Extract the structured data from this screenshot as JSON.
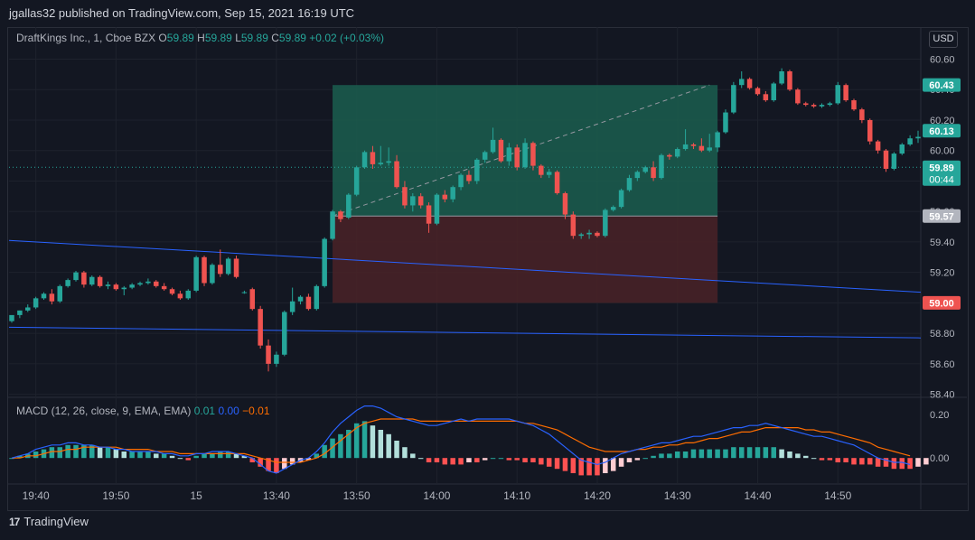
{
  "header": {
    "published": "jgallas32 published on TradingView.com, Sep 15, 2021 16:19 UTC"
  },
  "legend": {
    "symbol": "DraftKings Inc., 1, Cboe BZX",
    "o_label": "O",
    "o_value": "59.89",
    "h_label": "H",
    "h_value": "59.89",
    "l_label": "L",
    "l_value": "59.89",
    "c_label": "C",
    "c_value": "59.89",
    "change": "+0.02 (+0.03%)"
  },
  "macd_legend": {
    "label": "MACD (12, 26, close, 9, EMA, EMA)",
    "macd": "0.01",
    "signal": "0.00",
    "hist": "−0.01"
  },
  "currency": "USD",
  "footer": {
    "brand": "TradingView",
    "logo": "17"
  },
  "colors": {
    "up": "#26a69a",
    "down": "#ef5350",
    "bg": "#131722",
    "grid": "#1e222d",
    "profit_zone": "#1b5e4f",
    "loss_zone": "#4a2227",
    "trendline": "#2962ff",
    "macd_line": "#2962ff",
    "signal_line": "#ff6d00",
    "hist_up_strong": "#26a69a",
    "hist_up_weak": "#b2dfdb",
    "hist_down_strong": "#ff5252",
    "hist_down_weak": "#ffcdd2"
  },
  "chart_data": [
    {
      "type": "candlestick",
      "title": "DraftKings Inc., 1, Cboe BZX",
      "ylim": [
        58.38,
        60.68
      ],
      "y_ticks": [
        "60.60",
        "60.40",
        "60.20",
        "60.00",
        "59.80",
        "59.60",
        "59.40",
        "59.20",
        "59.00",
        "58.80",
        "58.60",
        "58.40"
      ],
      "x_ticks": [
        "19:40",
        "19:50",
        "15",
        "13:40",
        "13:50",
        "14:00",
        "14:10",
        "14:20",
        "14:30",
        "14:40",
        "14:50"
      ],
      "price_labels": [
        {
          "text": "60.43",
          "value": 60.43,
          "color": "#26a69a"
        },
        {
          "text": "60.13",
          "value": 60.13,
          "color": "#26a69a"
        },
        {
          "text": "59.89",
          "sub": "00:44",
          "value": 59.89,
          "color": "#26a69a"
        },
        {
          "text": "59.57",
          "value": 59.57,
          "color": "#b2b5be"
        },
        {
          "text": "59.00",
          "value": 59.0,
          "color": "#ef5350"
        }
      ],
      "current_price": 59.89,
      "position": {
        "entry": 59.57,
        "target": 60.43,
        "stop": 59.0,
        "start_bar": 40,
        "end_bar": 88,
        "signal_line": {
          "from_bar": 40,
          "from_price": 59.57,
          "to_bar": 87,
          "to_price": 60.43
        }
      },
      "trendlines": [
        {
          "from_bar": 0,
          "from_price": 59.41,
          "to_bar": 112,
          "to_price": 59.07
        },
        {
          "from_bar": 0,
          "from_price": 58.84,
          "to_bar": 112,
          "to_price": 58.77
        }
      ],
      "candles": [
        [
          58.88,
          58.91,
          58.87,
          58.92
        ],
        [
          58.92,
          58.95,
          58.9,
          58.95
        ],
        [
          58.95,
          58.99,
          58.94,
          58.97
        ],
        [
          58.97,
          59.04,
          58.96,
          59.03
        ],
        [
          59.03,
          59.07,
          59.02,
          59.06
        ],
        [
          59.06,
          59.09,
          58.99,
          59.01
        ],
        [
          59.01,
          59.12,
          59.0,
          59.11
        ],
        [
          59.11,
          59.16,
          59.1,
          59.15
        ],
        [
          59.15,
          59.21,
          59.14,
          59.2
        ],
        [
          59.2,
          59.21,
          59.1,
          59.12
        ],
        [
          59.12,
          59.18,
          59.11,
          59.17
        ],
        [
          59.17,
          59.18,
          59.1,
          59.11
        ],
        [
          59.11,
          59.14,
          59.09,
          59.12
        ],
        [
          59.12,
          59.13,
          59.08,
          59.09
        ],
        [
          59.09,
          59.11,
          59.05,
          59.1
        ],
        [
          59.1,
          59.13,
          59.09,
          59.12
        ],
        [
          59.12,
          59.14,
          59.11,
          59.13
        ],
        [
          59.13,
          59.16,
          59.12,
          59.14
        ],
        [
          59.14,
          59.15,
          59.1,
          59.11
        ],
        [
          59.11,
          59.13,
          59.08,
          59.09
        ],
        [
          59.09,
          59.1,
          59.05,
          59.06
        ],
        [
          59.06,
          59.08,
          59.02,
          59.03
        ],
        [
          59.03,
          59.09,
          59.02,
          59.08
        ],
        [
          59.08,
          59.31,
          59.07,
          59.3
        ],
        [
          59.3,
          59.31,
          59.11,
          59.13
        ],
        [
          59.13,
          59.26,
          59.12,
          59.25
        ],
        [
          59.25,
          59.35,
          59.17,
          59.19
        ],
        [
          59.19,
          59.3,
          59.18,
          59.29
        ],
        [
          59.29,
          59.31,
          59.16,
          59.17
        ],
        [
          59.07,
          59.08,
          59.06,
          59.07
        ],
        [
          59.09,
          59.1,
          58.95,
          58.96
        ],
        [
          58.96,
          58.98,
          58.7,
          58.72
        ],
        [
          58.72,
          58.76,
          58.55,
          58.6
        ],
        [
          58.6,
          58.68,
          58.58,
          58.66
        ],
        [
          58.66,
          58.95,
          58.65,
          58.94
        ],
        [
          58.94,
          59.1,
          58.92,
          59.01
        ],
        [
          59.01,
          59.05,
          58.99,
          59.04
        ],
        [
          59.04,
          59.06,
          58.95,
          58.96
        ],
        [
          58.96,
          59.12,
          58.95,
          59.11
        ],
        [
          59.11,
          59.43,
          59.1,
          59.42
        ],
        [
          59.42,
          59.61,
          59.41,
          59.6
        ],
        [
          59.6,
          59.61,
          59.53,
          59.55
        ],
        [
          59.56,
          59.72,
          59.55,
          59.71
        ],
        [
          59.71,
          59.9,
          59.7,
          59.89
        ],
        [
          59.89,
          60.0,
          59.88,
          59.99
        ],
        [
          59.99,
          60.03,
          59.88,
          59.91
        ],
        [
          59.91,
          60.03,
          59.9,
          59.92
        ],
        [
          59.92,
          60.02,
          59.9,
          59.93
        ],
        [
          59.93,
          59.97,
          59.75,
          59.76
        ],
        [
          59.76,
          59.8,
          59.62,
          59.64
        ],
        [
          59.64,
          59.72,
          59.6,
          59.7
        ],
        [
          59.7,
          59.72,
          59.62,
          59.64
        ],
        [
          59.64,
          59.66,
          59.46,
          59.52
        ],
        [
          59.52,
          59.72,
          59.51,
          59.71
        ],
        [
          59.71,
          59.74,
          59.66,
          59.68
        ],
        [
          59.68,
          59.77,
          59.66,
          59.76
        ],
        [
          59.76,
          59.85,
          59.74,
          59.84
        ],
        [
          59.84,
          59.87,
          59.78,
          59.8
        ],
        [
          59.8,
          59.95,
          59.78,
          59.94
        ],
        [
          59.94,
          60.0,
          59.92,
          59.99
        ],
        [
          59.99,
          60.15,
          59.98,
          60.07
        ],
        [
          60.07,
          60.08,
          59.92,
          59.93
        ],
        [
          59.93,
          60.05,
          59.9,
          60.02
        ],
        [
          60.02,
          60.04,
          59.87,
          59.89
        ],
        [
          59.89,
          60.08,
          59.88,
          60.05
        ],
        [
          60.05,
          60.06,
          59.87,
          59.9
        ],
        [
          59.9,
          59.91,
          59.82,
          59.84
        ],
        [
          59.84,
          59.88,
          59.82,
          59.86
        ],
        [
          59.86,
          59.87,
          59.71,
          59.72
        ],
        [
          59.72,
          59.73,
          59.55,
          59.58
        ],
        [
          59.58,
          59.6,
          59.42,
          59.44
        ],
        [
          59.44,
          59.46,
          59.42,
          59.45
        ],
        [
          59.45,
          59.48,
          59.42,
          59.46
        ],
        [
          59.46,
          59.47,
          59.43,
          59.44
        ],
        [
          59.44,
          59.62,
          59.43,
          59.61
        ],
        [
          59.61,
          59.64,
          59.6,
          59.63
        ],
        [
          59.63,
          59.75,
          59.62,
          59.74
        ],
        [
          59.74,
          59.84,
          59.73,
          59.82
        ],
        [
          59.82,
          59.87,
          59.8,
          59.86
        ],
        [
          59.86,
          59.9,
          59.85,
          59.89
        ],
        [
          59.89,
          59.93,
          59.8,
          59.82
        ],
        [
          59.82,
          59.98,
          59.81,
          59.97
        ],
        [
          59.97,
          59.98,
          59.94,
          59.96
        ],
        [
          59.96,
          60.02,
          59.95,
          60.01
        ],
        [
          60.01,
          60.14,
          60.0,
          60.04
        ],
        [
          60.04,
          60.05,
          60.01,
          60.03
        ],
        [
          60.03,
          60.08,
          59.99,
          60.0
        ],
        [
          60.0,
          60.11,
          59.99,
          60.02
        ],
        [
          60.02,
          60.13,
          59.99,
          60.12
        ],
        [
          60.12,
          60.27,
          60.11,
          60.25
        ],
        [
          60.25,
          60.45,
          60.24,
          60.43
        ],
        [
          60.43,
          60.52,
          60.41,
          60.47
        ],
        [
          60.47,
          60.48,
          60.4,
          60.41
        ],
        [
          60.41,
          60.42,
          60.36,
          60.37
        ],
        [
          60.37,
          60.39,
          60.32,
          60.33
        ],
        [
          60.33,
          60.45,
          60.32,
          60.44
        ],
        [
          60.44,
          60.54,
          60.43,
          60.52
        ],
        [
          60.52,
          60.53,
          60.39,
          60.4
        ],
        [
          60.4,
          60.41,
          60.3,
          60.31
        ],
        [
          60.31,
          60.32,
          60.29,
          60.3
        ],
        [
          60.3,
          60.31,
          60.28,
          60.29
        ],
        [
          60.29,
          60.31,
          60.28,
          60.3
        ],
        [
          60.3,
          60.32,
          60.29,
          60.31
        ],
        [
          60.31,
          60.45,
          60.3,
          60.43
        ],
        [
          60.43,
          60.44,
          60.32,
          60.33
        ],
        [
          60.33,
          60.34,
          60.26,
          60.27
        ],
        [
          60.27,
          60.28,
          60.18,
          60.2
        ],
        [
          60.2,
          60.21,
          60.04,
          60.06
        ],
        [
          60.06,
          60.07,
          59.98,
          60.0
        ],
        [
          60.0,
          60.01,
          59.86,
          59.88
        ],
        [
          59.88,
          59.99,
          59.87,
          59.98
        ],
        [
          59.98,
          60.05,
          59.97,
          60.04
        ],
        [
          60.04,
          60.1,
          60.03,
          60.08
        ],
        [
          60.08,
          60.13,
          60.05,
          60.09
        ]
      ]
    },
    {
      "type": "macd",
      "title": "MACD (12, 26, close, 9, EMA, EMA)",
      "ylim": [
        -0.12,
        0.28
      ],
      "y_ticks": [
        "0.20",
        "0.00"
      ],
      "histogram": [
        0.0,
        0.01,
        0.02,
        0.03,
        0.04,
        0.05,
        0.05,
        0.06,
        0.06,
        0.06,
        0.06,
        0.05,
        0.05,
        0.04,
        0.03,
        0.03,
        0.03,
        0.03,
        0.02,
        0.02,
        0.01,
        0.0,
        -0.01,
        0.01,
        0.02,
        0.02,
        0.03,
        0.03,
        0.02,
        0.01,
        -0.02,
        -0.04,
        -0.06,
        -0.07,
        -0.05,
        -0.03,
        -0.02,
        -0.01,
        0.02,
        0.06,
        0.09,
        0.11,
        0.13,
        0.16,
        0.17,
        0.15,
        0.13,
        0.11,
        0.08,
        0.05,
        0.02,
        0.0,
        -0.02,
        -0.02,
        -0.03,
        -0.03,
        -0.03,
        -0.02,
        -0.02,
        -0.01,
        0.0,
        0.0,
        -0.01,
        -0.01,
        -0.02,
        -0.02,
        -0.03,
        -0.04,
        -0.05,
        -0.06,
        -0.07,
        -0.08,
        -0.08,
        -0.08,
        -0.07,
        -0.06,
        -0.04,
        -0.02,
        -0.01,
        0.0,
        0.01,
        0.02,
        0.02,
        0.03,
        0.03,
        0.04,
        0.04,
        0.04,
        0.04,
        0.04,
        0.05,
        0.05,
        0.05,
        0.05,
        0.05,
        0.05,
        0.04,
        0.03,
        0.02,
        0.01,
        0.0,
        -0.01,
        -0.01,
        -0.02,
        -0.02,
        -0.03,
        -0.03,
        -0.03,
        -0.04,
        -0.04,
        -0.05,
        -0.05,
        -0.05,
        -0.04,
        -0.03
      ],
      "macd_line": [
        0.0,
        0.01,
        0.02,
        0.04,
        0.05,
        0.06,
        0.06,
        0.07,
        0.07,
        0.06,
        0.06,
        0.05,
        0.05,
        0.04,
        0.04,
        0.03,
        0.03,
        0.03,
        0.03,
        0.02,
        0.02,
        0.01,
        0.01,
        0.02,
        0.02,
        0.03,
        0.03,
        0.03,
        0.02,
        0.01,
        0.0,
        -0.03,
        -0.06,
        -0.07,
        -0.05,
        -0.03,
        -0.01,
        0.0,
        0.03,
        0.07,
        0.12,
        0.16,
        0.19,
        0.22,
        0.24,
        0.24,
        0.23,
        0.21,
        0.19,
        0.18,
        0.17,
        0.16,
        0.15,
        0.15,
        0.16,
        0.17,
        0.18,
        0.17,
        0.18,
        0.18,
        0.18,
        0.18,
        0.18,
        0.17,
        0.16,
        0.15,
        0.13,
        0.11,
        0.08,
        0.05,
        0.02,
        -0.01,
        -0.02,
        -0.03,
        -0.02,
        0.0,
        0.02,
        0.03,
        0.04,
        0.05,
        0.06,
        0.07,
        0.07,
        0.08,
        0.09,
        0.1,
        0.1,
        0.11,
        0.12,
        0.13,
        0.14,
        0.14,
        0.15,
        0.15,
        0.16,
        0.15,
        0.14,
        0.13,
        0.12,
        0.11,
        0.1,
        0.1,
        0.09,
        0.08,
        0.07,
        0.06,
        0.04,
        0.02,
        0.0,
        -0.01,
        -0.02,
        -0.02,
        -0.03
      ],
      "signal_line": [
        0.0,
        0.0,
        0.01,
        0.01,
        0.02,
        0.03,
        0.03,
        0.04,
        0.04,
        0.05,
        0.05,
        0.05,
        0.05,
        0.05,
        0.04,
        0.04,
        0.04,
        0.04,
        0.03,
        0.03,
        0.03,
        0.02,
        0.02,
        0.02,
        0.02,
        0.02,
        0.02,
        0.02,
        0.02,
        0.02,
        0.01,
        0.0,
        -0.01,
        -0.02,
        -0.02,
        -0.02,
        -0.02,
        -0.01,
        0.0,
        0.02,
        0.05,
        0.08,
        0.11,
        0.14,
        0.16,
        0.17,
        0.18,
        0.18,
        0.18,
        0.18,
        0.18,
        0.17,
        0.17,
        0.17,
        0.17,
        0.17,
        0.17,
        0.17,
        0.17,
        0.17,
        0.17,
        0.17,
        0.17,
        0.17,
        0.16,
        0.16,
        0.15,
        0.14,
        0.13,
        0.11,
        0.09,
        0.07,
        0.05,
        0.04,
        0.03,
        0.03,
        0.03,
        0.03,
        0.04,
        0.04,
        0.05,
        0.05,
        0.06,
        0.06,
        0.07,
        0.07,
        0.08,
        0.09,
        0.09,
        0.1,
        0.11,
        0.12,
        0.12,
        0.13,
        0.14,
        0.14,
        0.14,
        0.14,
        0.14,
        0.13,
        0.13,
        0.12,
        0.12,
        0.11,
        0.1,
        0.09,
        0.08,
        0.07,
        0.05,
        0.04,
        0.03,
        0.02,
        0.01
      ]
    }
  ]
}
